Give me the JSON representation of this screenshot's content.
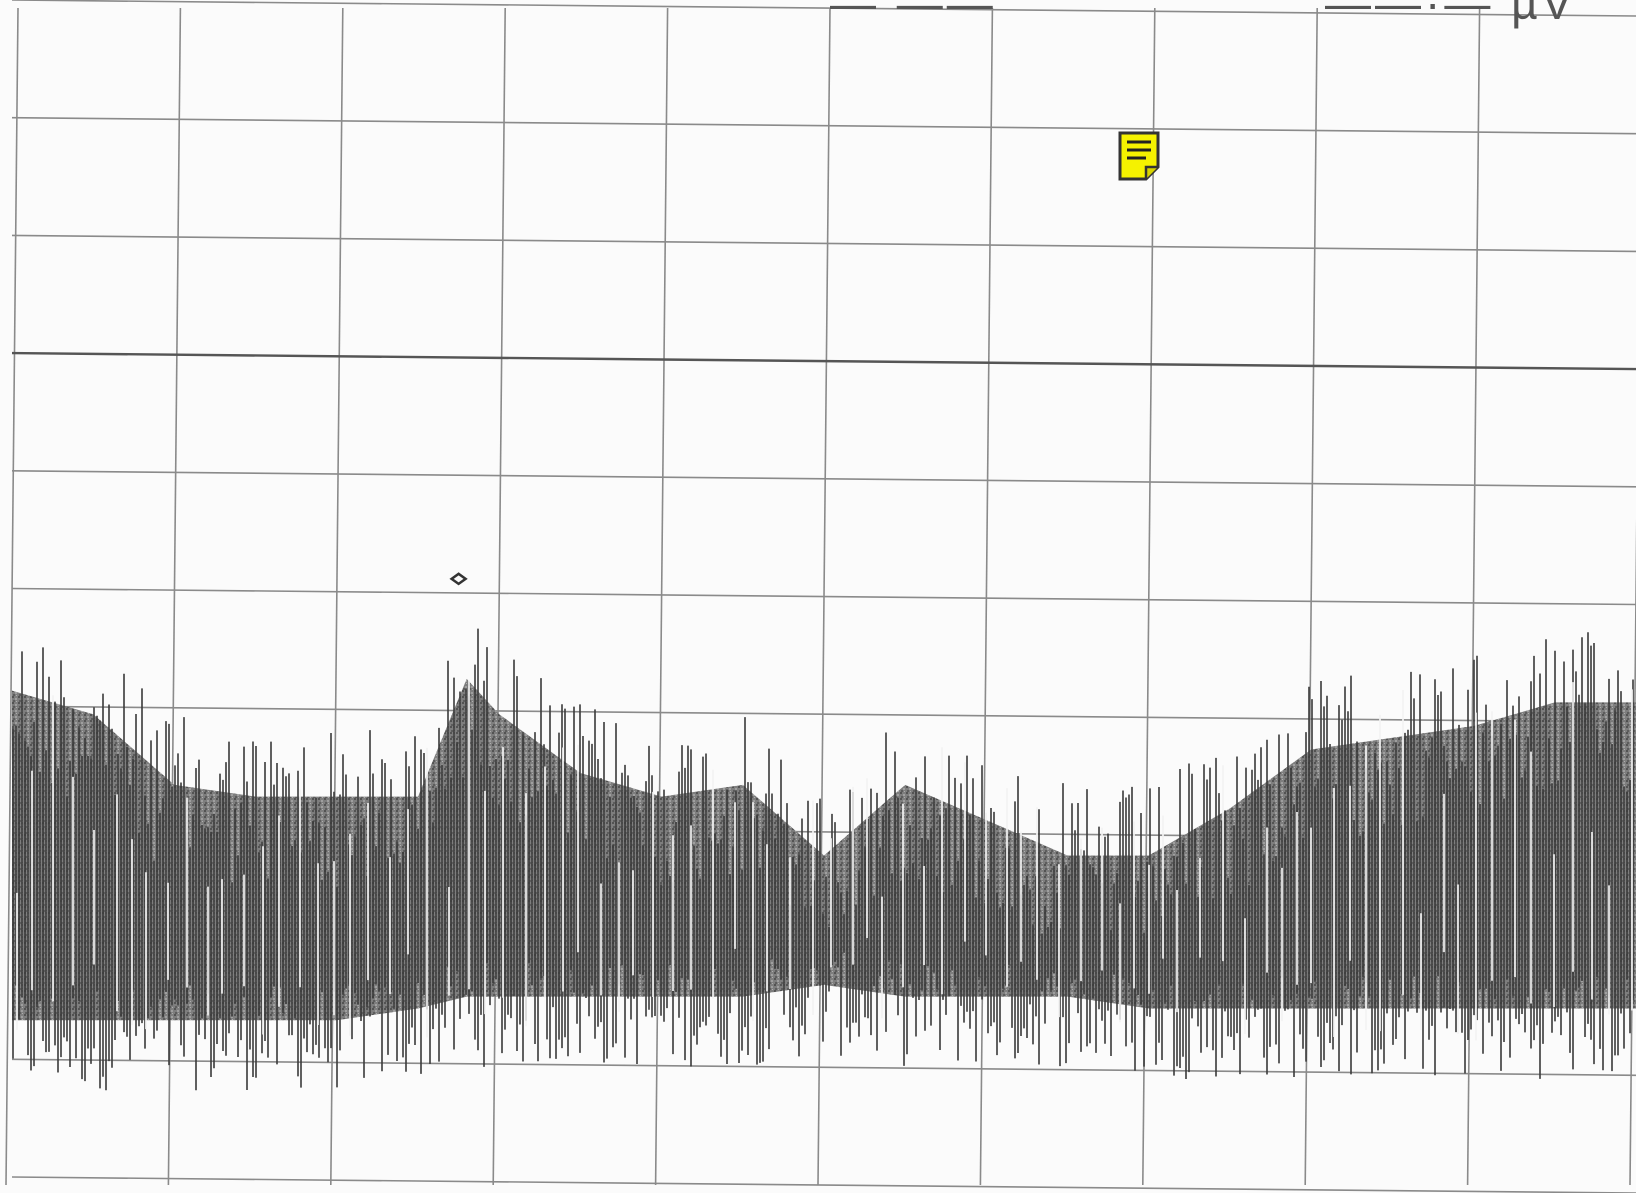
{
  "header": {
    "readout_left": "— ——",
    "readout_right": "——·— µV"
  },
  "annotation": {
    "icon": "sticky-note-icon",
    "fill": "#f5f200",
    "stroke": "#333333"
  },
  "colors": {
    "trace": "#3a3a3a",
    "trace_fill": "#6b6b6b",
    "grid": "#8a8a8a",
    "grid_major": "#555555"
  },
  "chart_data": {
    "type": "area",
    "title": "",
    "xlabel": "",
    "ylabel": "",
    "grid": true,
    "divisions_x": 10,
    "divisions_y": 10,
    "xlim": [
      0,
      10
    ],
    "ylim": [
      0,
      10
    ],
    "series": [
      {
        "x": [
          0,
          0.5,
          1,
          1.5,
          2,
          2.5,
          2.8,
          3,
          3.5,
          4,
          4.5,
          5,
          5.5,
          6,
          6.5,
          7,
          7.5,
          8,
          8.5,
          9,
          9.5,
          10
        ],
        "upper": [
          4.8,
          4.6,
          4.0,
          3.9,
          3.9,
          3.9,
          4.9,
          4.6,
          4.1,
          3.9,
          4.0,
          3.4,
          4.0,
          3.7,
          3.4,
          3.4,
          3.8,
          4.3,
          4.4,
          4.5,
          4.7,
          4.7
        ],
        "lower": [
          0.8,
          0.8,
          0.8,
          0.8,
          0.8,
          0.9,
          1.0,
          1.0,
          1.0,
          1.0,
          1.0,
          1.1,
          1.0,
          1.0,
          1.0,
          0.9,
          0.9,
          0.9,
          0.9,
          0.9,
          0.9,
          0.9
        ]
      }
    ]
  }
}
